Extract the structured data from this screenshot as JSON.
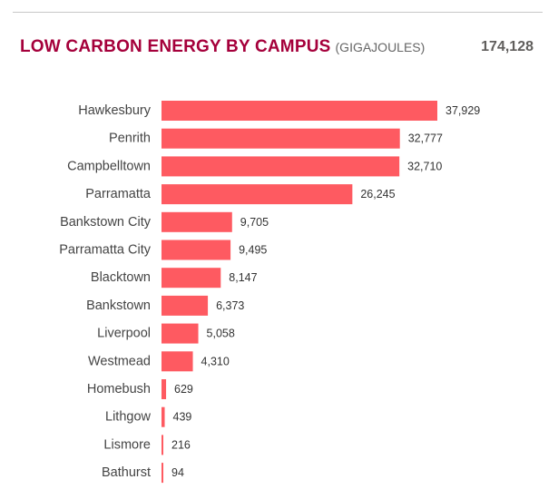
{
  "header": {
    "title": "LOW CARBON ENERGY BY CAMPUS",
    "unit": "(GIGAJOULES)",
    "total": "174,128"
  },
  "colors": {
    "title": "#a5003b",
    "unit": "#666666",
    "bar": "#fe5a61",
    "category_label": "#444444",
    "value_label": "#333333"
  },
  "chart_data": {
    "type": "bar",
    "orientation": "horizontal",
    "title": "LOW CARBON ENERGY BY CAMPUS",
    "unit": "(GIGAJOULES)",
    "categories": [
      "Hawkesbury",
      "Penrith",
      "Campbelltown",
      "Parramatta",
      "Bankstown City",
      "Parramatta City",
      "Blacktown",
      "Bankstown",
      "Liverpool",
      "Westmead",
      "Homebush",
      "Lithgow",
      "Lismore",
      "Bathurst"
    ],
    "values": [
      37929,
      32777,
      32710,
      26245,
      9705,
      9495,
      8147,
      6373,
      5058,
      4310,
      629,
      439,
      216,
      94
    ],
    "value_labels": [
      "37,929",
      "32,777",
      "32,710",
      "26,245",
      "9,705",
      "9,495",
      "8,147",
      "6,373",
      "5,058",
      "4,310",
      "629",
      "439",
      "216",
      "94"
    ],
    "xlim": [
      0,
      37929
    ],
    "grid": false,
    "legend": "none"
  }
}
